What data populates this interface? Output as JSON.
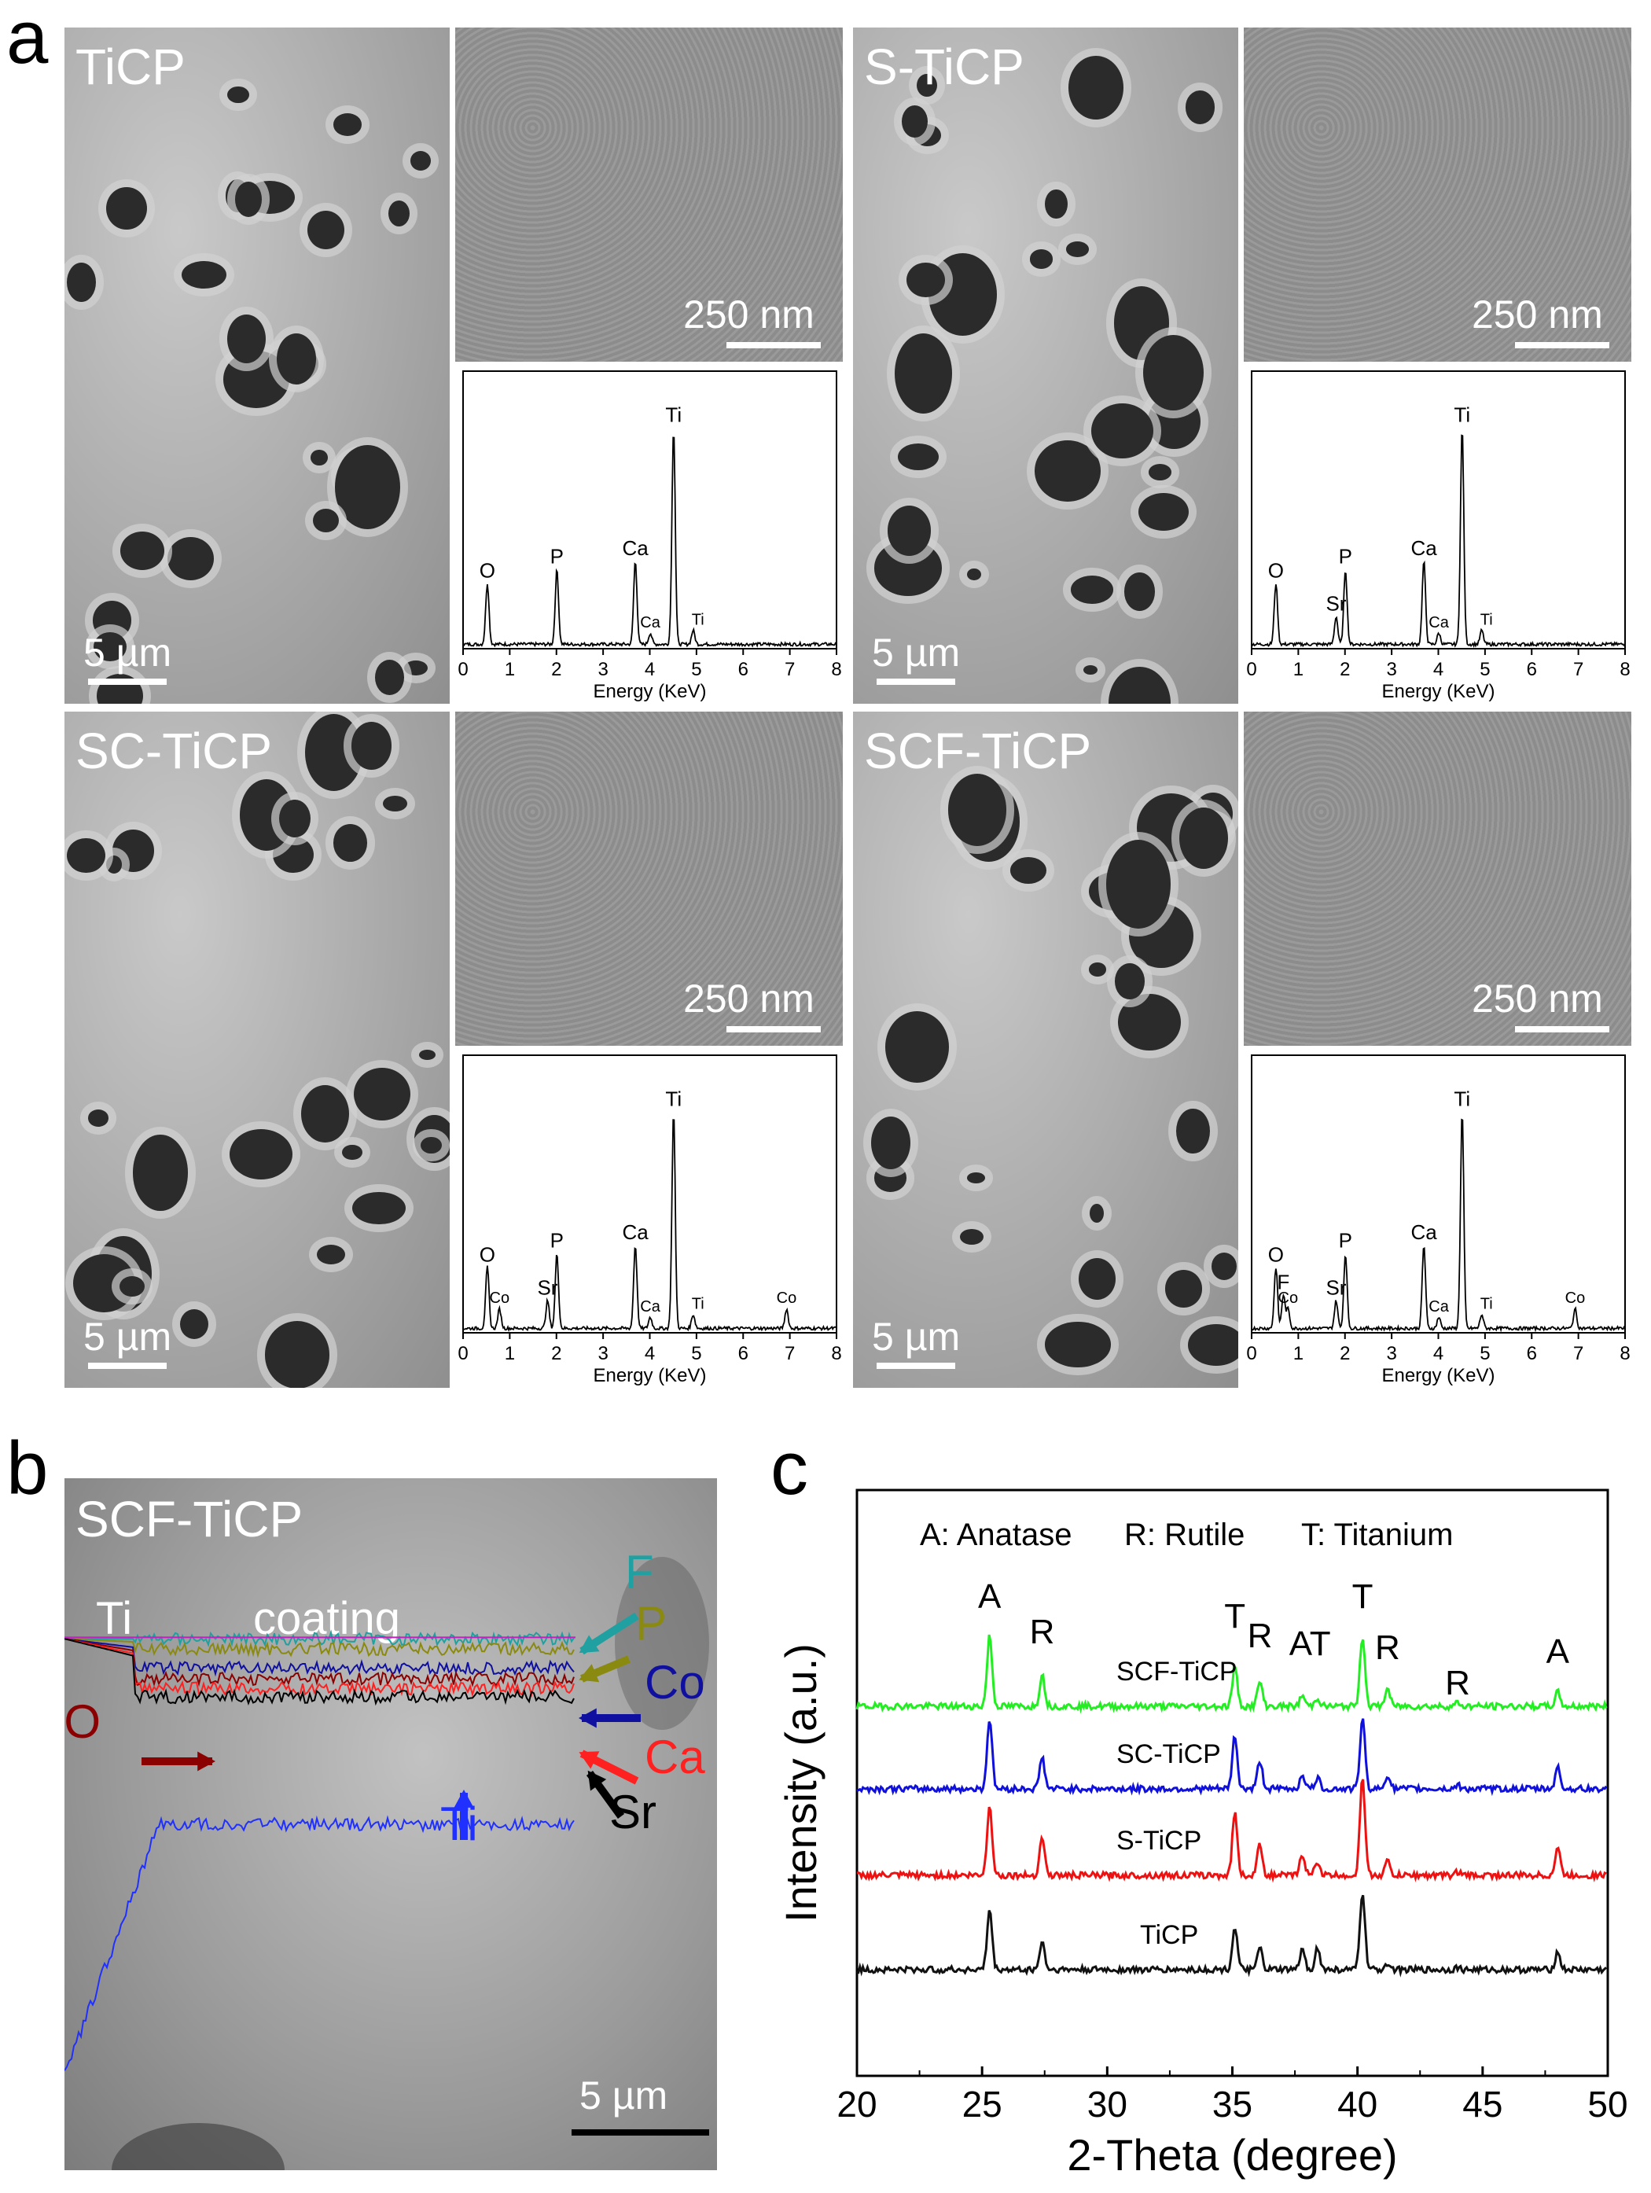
{
  "panel_letters": {
    "a": "a",
    "b": "b",
    "c": "c"
  },
  "panel_a": {
    "samples": [
      {
        "name": "TiCP",
        "scale_low": "5 µm",
        "scale_high": "250 nm",
        "eds": {
          "xlabel": "Energy (KeV)",
          "xticks": [
            "0",
            "1",
            "2",
            "3",
            "4",
            "5",
            "6",
            "7",
            "8"
          ],
          "peaks": [
            {
              "label": "O",
              "x": 0.52
            },
            {
              "label": "P",
              "x": 2.01
            },
            {
              "label": "Ca",
              "x": 3.69
            },
            {
              "label": "Ca",
              "x": 4.01
            },
            {
              "label": "Ti",
              "x": 4.51
            },
            {
              "label": "Ti",
              "x": 4.93
            }
          ]
        }
      },
      {
        "name": "S-TiCP",
        "scale_low": "5 µm",
        "scale_high": "250 nm",
        "eds": {
          "xlabel": "Energy (KeV)",
          "xticks": [
            "0",
            "1",
            "2",
            "3",
            "4",
            "5",
            "6",
            "7",
            "8"
          ],
          "peaks": [
            {
              "label": "O",
              "x": 0.52
            },
            {
              "label": "Sr",
              "x": 1.81
            },
            {
              "label": "P",
              "x": 2.01
            },
            {
              "label": "Ca",
              "x": 3.69
            },
            {
              "label": "Ca",
              "x": 4.01
            },
            {
              "label": "Ti",
              "x": 4.51
            },
            {
              "label": "Ti",
              "x": 4.93
            }
          ]
        }
      },
      {
        "name": "SC-TiCP",
        "scale_low": "5 µm",
        "scale_high": "250 nm",
        "eds": {
          "xlabel": "Energy (KeV)",
          "xticks": [
            "0",
            "1",
            "2",
            "3",
            "4",
            "5",
            "6",
            "7",
            "8"
          ],
          "peaks": [
            {
              "label": "O",
              "x": 0.52
            },
            {
              "label": "Co",
              "x": 0.78
            },
            {
              "label": "Sr",
              "x": 1.81
            },
            {
              "label": "P",
              "x": 2.01
            },
            {
              "label": "Ca",
              "x": 3.69
            },
            {
              "label": "Ca",
              "x": 4.01
            },
            {
              "label": "Ti",
              "x": 4.51
            },
            {
              "label": "Ti",
              "x": 4.93
            },
            {
              "label": "Co",
              "x": 6.93
            }
          ]
        }
      },
      {
        "name": "SCF-TiCP",
        "scale_low": "5 µm",
        "scale_high": "250 nm",
        "eds": {
          "xlabel": "Energy (KeV)",
          "xticks": [
            "0",
            "1",
            "2",
            "3",
            "4",
            "5",
            "6",
            "7",
            "8"
          ],
          "peaks": [
            {
              "label": "O",
              "x": 0.52
            },
            {
              "label": "F",
              "x": 0.68
            },
            {
              "label": "Co",
              "x": 0.78
            },
            {
              "label": "Sr",
              "x": 1.81
            },
            {
              "label": "P",
              "x": 2.01
            },
            {
              "label": "Ca",
              "x": 3.69
            },
            {
              "label": "Ca",
              "x": 4.01
            },
            {
              "label": "Ti",
              "x": 4.51
            },
            {
              "label": "Ti",
              "x": 4.93
            },
            {
              "label": "Co",
              "x": 6.93
            }
          ]
        }
      }
    ]
  },
  "panel_b": {
    "sample": "SCF-TiCP",
    "region_ti": "Ti",
    "region_coating": "coating",
    "scale": "5 µm",
    "elements": [
      {
        "label": "F",
        "color": "#20a0a0"
      },
      {
        "label": "P",
        "color": "#8a8a10"
      },
      {
        "label": "Co",
        "color": "#1010a0"
      },
      {
        "label": "O",
        "color": "#8b0000"
      },
      {
        "label": "Ca",
        "color": "#ff2020"
      },
      {
        "label": "Sr",
        "color": "#000000"
      },
      {
        "label": "Ti",
        "color": "#2030ff"
      }
    ]
  },
  "chart_data": {
    "type": "line",
    "title": "",
    "xlabel": "2-Theta (degree)",
    "ylabel": "Intensity (a.u.)",
    "xlim": [
      20,
      50
    ],
    "xticks": [
      "20",
      "25",
      "30",
      "35",
      "40",
      "45",
      "50"
    ],
    "legend_text": {
      "a": "A: Anatase",
      "r": "R: Rutile",
      "t": "T: Titanium"
    },
    "peak_labels": [
      {
        "label": "A",
        "x": 25.3
      },
      {
        "label": "R",
        "x": 27.4
      },
      {
        "label": "T",
        "x": 35.1
      },
      {
        "label": "R",
        "x": 36.1
      },
      {
        "label": "AT",
        "x": 38.1
      },
      {
        "label": "T",
        "x": 40.2
      },
      {
        "label": "R",
        "x": 41.2
      },
      {
        "label": "R",
        "x": 44.0
      },
      {
        "label": "A",
        "x": 48.0
      }
    ],
    "series": [
      {
        "name": "SCF-TiCP",
        "color": "#22ee22",
        "peaks": [
          [
            25.3,
            1.0
          ],
          [
            27.4,
            0.45
          ],
          [
            35.1,
            0.55
          ],
          [
            36.1,
            0.35
          ],
          [
            37.8,
            0.15
          ],
          [
            38.4,
            0.12
          ],
          [
            40.2,
            1.0
          ],
          [
            41.2,
            0.25
          ],
          [
            44.0,
            0.05
          ],
          [
            48.0,
            0.2
          ]
        ]
      },
      {
        "name": "SC-TiCP",
        "color": "#1010dd",
        "peaks": [
          [
            25.3,
            1.0
          ],
          [
            27.4,
            0.45
          ],
          [
            35.1,
            0.75
          ],
          [
            36.1,
            0.4
          ],
          [
            37.8,
            0.2
          ],
          [
            38.4,
            0.15
          ],
          [
            40.2,
            1.0
          ],
          [
            41.2,
            0.2
          ],
          [
            44.0,
            0.05
          ],
          [
            48.0,
            0.3
          ]
        ]
      },
      {
        "name": "S-TiCP",
        "color": "#ee1111",
        "peaks": [
          [
            25.3,
            1.0
          ],
          [
            27.4,
            0.55
          ],
          [
            35.1,
            0.9
          ],
          [
            36.1,
            0.45
          ],
          [
            37.8,
            0.3
          ],
          [
            38.4,
            0.2
          ],
          [
            40.2,
            1.4
          ],
          [
            41.2,
            0.2
          ],
          [
            44.0,
            0.05
          ],
          [
            48.0,
            0.4
          ]
        ]
      },
      {
        "name": "TiCP",
        "color": "#111111",
        "peaks": [
          [
            25.3,
            0.85
          ],
          [
            27.4,
            0.4
          ],
          [
            35.1,
            0.6
          ],
          [
            36.1,
            0.3
          ],
          [
            37.8,
            0.28
          ],
          [
            38.4,
            0.3
          ],
          [
            40.2,
            1.1
          ],
          [
            41.2,
            0.1
          ],
          [
            44.0,
            0.03
          ],
          [
            48.0,
            0.25
          ]
        ]
      }
    ]
  }
}
